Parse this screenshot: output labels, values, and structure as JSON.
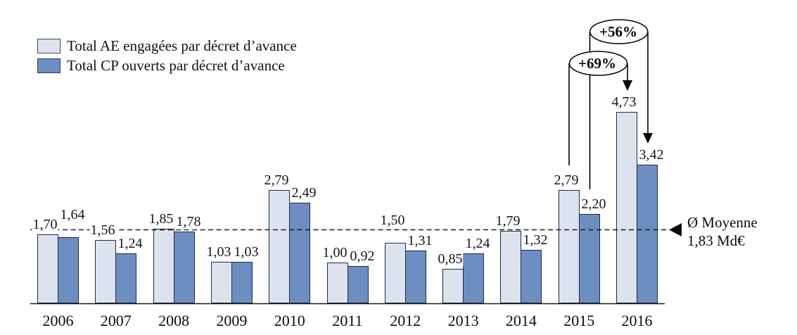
{
  "chart_data": {
    "type": "bar",
    "categories": [
      "2006",
      "2007",
      "2008",
      "2009",
      "2010",
      "2011",
      "2012",
      "2013",
      "2014",
      "2015",
      "2016"
    ],
    "series": [
      {
        "key": "AE",
        "name": "Total AE engagées par décret d’avance",
        "color": "#dce3ef",
        "values": [
          1.7,
          1.56,
          1.85,
          1.03,
          2.79,
          1.0,
          1.5,
          0.85,
          1.79,
          2.79,
          4.73
        ],
        "labels": [
          "1,70",
          "1,56",
          "1,85",
          "1,03",
          "2,79",
          "1,00",
          "1,50",
          "0,85",
          "1,79",
          "2,79",
          "4,73"
        ]
      },
      {
        "key": "CP",
        "name": "Total CP ouverts par décret d’avance",
        "color": "#6d8ec1",
        "values": [
          1.64,
          1.24,
          1.78,
          1.03,
          2.49,
          0.92,
          1.31,
          1.24,
          1.32,
          2.2,
          3.42
        ],
        "labels": [
          "1,64",
          "1,24",
          "1,78",
          "1,03",
          "2,49",
          "0,92",
          "1,31",
          "1,24",
          "1,32",
          "2,20",
          "3,42"
        ]
      }
    ],
    "average_line": {
      "value": 1.83,
      "label_lines": [
        "Ø Moyenne",
        "1,83 Md€"
      ]
    },
    "annotations": [
      {
        "text": "+56%",
        "from": {
          "category": "2015",
          "series": "CP"
        },
        "to": {
          "category": "2016",
          "series": "CP"
        }
      },
      {
        "text": "+69%",
        "from": {
          "category": "2015",
          "series": "AE"
        },
        "to": {
          "category": "2016",
          "series": "AE"
        }
      }
    ],
    "raised_value_labels": [
      {
        "category": "2006",
        "series": "CP"
      },
      {
        "category": "2012",
        "series": "AE"
      }
    ],
    "unit": "Md€",
    "decimal_separator": ",",
    "ylim": [
      0,
      5
    ],
    "grid": false,
    "legend_position": "top-left"
  }
}
